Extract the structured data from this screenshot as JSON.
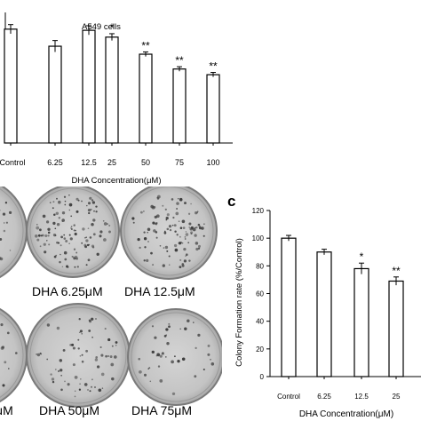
{
  "chart_data": [
    {
      "type": "bar",
      "title": "A549 cells",
      "xlabel": "DHA  Concentration(μM)",
      "ylabel": "",
      "categories": [
        "Control",
        "6.25",
        "12.5",
        "25",
        "50",
        "75",
        "100"
      ],
      "values": [
        100,
        85,
        99,
        93,
        78,
        65,
        60
      ],
      "errors": [
        4,
        5,
        4,
        3,
        2,
        2,
        2
      ],
      "significance": [
        "",
        "",
        "",
        "*",
        "**",
        "**",
        "**"
      ],
      "ylim": [
        0,
        110
      ],
      "grid": false
    },
    {
      "type": "bar",
      "panel_label": "c",
      "title": "",
      "xlabel": "DHA Concentration(μM)",
      "ylabel": "Colony  Formation rate (%/Control)",
      "categories": [
        "Control",
        "6.25",
        "12.5",
        "25"
      ],
      "values": [
        100,
        90,
        78,
        69
      ],
      "errors": [
        2,
        2,
        4,
        3
      ],
      "significance": [
        "",
        "",
        "*",
        "**"
      ],
      "yticks": [
        0,
        20,
        40,
        60,
        80,
        100,
        120
      ],
      "ylim": [
        0,
        120
      ],
      "grid": false
    }
  ],
  "dish_captions": {
    "c1": "DHA 6.25μM",
    "c2": "DHA 12.5μM",
    "c3": "μM",
    "c4": "DHA 50μM",
    "c5": "DHA 75μM"
  }
}
